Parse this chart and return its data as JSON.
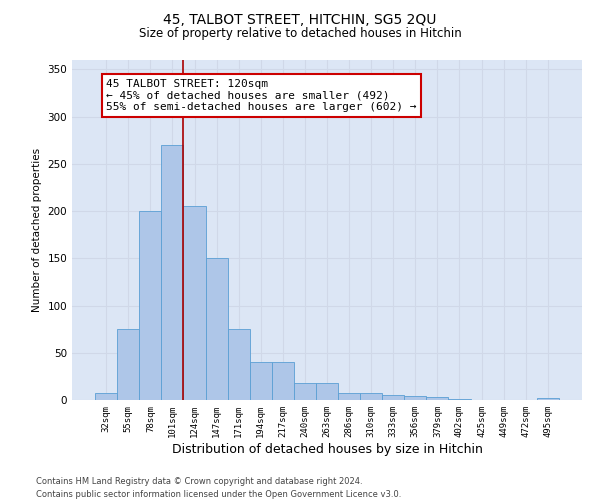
{
  "title1": "45, TALBOT STREET, HITCHIN, SG5 2QU",
  "title2": "Size of property relative to detached houses in Hitchin",
  "xlabel": "Distribution of detached houses by size in Hitchin",
  "ylabel": "Number of detached properties",
  "categories": [
    "32sqm",
    "55sqm",
    "78sqm",
    "101sqm",
    "124sqm",
    "147sqm",
    "171sqm",
    "194sqm",
    "217sqm",
    "240sqm",
    "263sqm",
    "286sqm",
    "310sqm",
    "333sqm",
    "356sqm",
    "379sqm",
    "402sqm",
    "425sqm",
    "449sqm",
    "472sqm",
    "495sqm"
  ],
  "values": [
    7,
    75,
    200,
    270,
    205,
    150,
    75,
    40,
    40,
    18,
    18,
    7,
    7,
    5,
    4,
    3,
    1,
    0,
    0,
    0,
    2
  ],
  "bar_color": "#aec6e8",
  "bar_edge_color": "#5a9fd4",
  "grid_color": "#d0d8e8",
  "background_color": "#dce6f5",
  "vline_x": 3.5,
  "vline_color": "#aa0000",
  "annotation_text": "45 TALBOT STREET: 120sqm\n← 45% of detached houses are smaller (492)\n55% of semi-detached houses are larger (602) →",
  "annotation_box_color": "#ffffff",
  "annotation_box_edge": "#cc0000",
  "footer1": "Contains HM Land Registry data © Crown copyright and database right 2024.",
  "footer2": "Contains public sector information licensed under the Open Government Licence v3.0.",
  "ylim": [
    0,
    360
  ],
  "yticks": [
    0,
    50,
    100,
    150,
    200,
    250,
    300,
    350
  ]
}
